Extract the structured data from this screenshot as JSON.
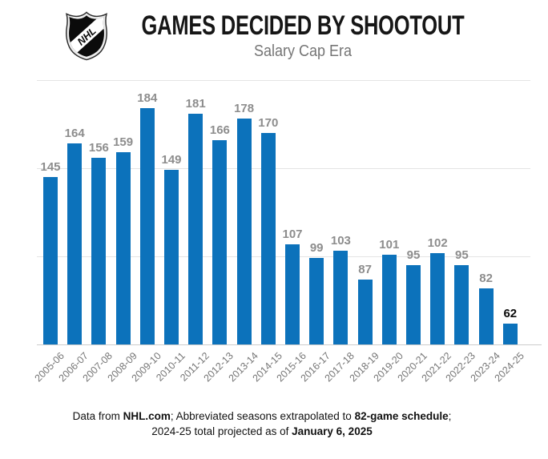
{
  "header": {
    "title": "GAMES DECIDED BY SHOOTOUT",
    "subtitle": "Salary Cap Era",
    "logo_text": "NHL"
  },
  "chart_data": {
    "type": "bar",
    "title": "GAMES DECIDED BY SHOOTOUT",
    "subtitle": "Salary Cap Era",
    "categories": [
      "2005-06",
      "2006-07",
      "2007-08",
      "2008-09",
      "2009-10",
      "2010-11",
      "2011-12",
      "2012-13",
      "2013-14",
      "2014-15",
      "2015-16",
      "2016-17",
      "2017-18",
      "2018-19",
      "2019-20",
      "2020-21",
      "2021-22",
      "2022-23",
      "2023-24",
      "2024-25"
    ],
    "values": [
      145,
      164,
      156,
      159,
      184,
      149,
      181,
      166,
      178,
      170,
      107,
      99,
      103,
      87,
      101,
      95,
      102,
      95,
      82,
      62
    ],
    "xlabel": "",
    "ylabel": "",
    "ylim": [
      50,
      205
    ],
    "gridline_values": [
      100,
      150,
      200
    ],
    "grid": "horizontal",
    "legend": "none",
    "y_axis_tick_labels_visible": false,
    "data_labels_visible": true,
    "bar_color": "#0c72bb",
    "data_label_color": "#8d8d8d",
    "final_data_label_color": "#0a0a0a",
    "gridline_color": "#e4e4e4",
    "axis_line_color": "#cccccc"
  },
  "footer": {
    "line1": [
      {
        "text": "Data from ",
        "bold": false
      },
      {
        "text": "NHL.com",
        "bold": true
      },
      {
        "text": "; Abbreviated seasons extrapolated to ",
        "bold": false
      },
      {
        "text": "82-game schedule",
        "bold": true
      },
      {
        "text": ";",
        "bold": false
      }
    ],
    "line2": [
      {
        "text": "2024-25 total projected as of ",
        "bold": false
      },
      {
        "text": "January 6, 2025",
        "bold": true
      }
    ]
  }
}
